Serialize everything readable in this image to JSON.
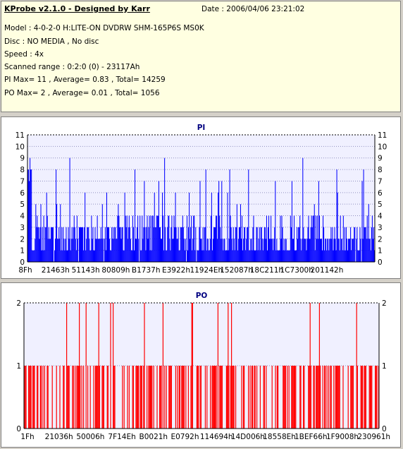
{
  "app": {
    "title": "KProbe v2.1.0 - Designed by Karr",
    "date": "Date : 2006/04/06 23:21:02"
  },
  "info": {
    "model": "Model : 4-0-2-0 H:LITE-ON DVDRW SHM-165P6S MS0K",
    "disc": "Disc : NO MEDIA , No disc",
    "speed": "Speed : 4x",
    "range": "Scanned range : 0:2:0 (0) - 23117Ah",
    "pi_summary": "PI Max= 11 , Average= 0.83 , Total= 14259",
    "po_summary": "PO Max= 2 , Average= 0.01 , Total= 1056"
  },
  "colors": {
    "pi": "#0000ff",
    "po": "#ff0000",
    "plot_bg": "#f0f0ff",
    "panel_bg": "#ffffe1"
  },
  "chart_data": [
    {
      "type": "bar",
      "title": "PI",
      "ylim": [
        0,
        11
      ],
      "yticks": [
        "0",
        "1",
        "2",
        "3",
        "4",
        "5",
        "6",
        "7",
        "8",
        "9",
        "10",
        "11"
      ],
      "xticks": [
        "8Fh",
        "21463h",
        "51143h",
        "80809h",
        "B1737h",
        "E3922h",
        "11924Eh",
        "152087h",
        "18C211h",
        "1C7300h",
        "201142h"
      ],
      "max": 11,
      "average": 0.83,
      "total": 14259,
      "grid": true,
      "series": [
        {
          "name": "PI",
          "color": "#0000ff"
        }
      ]
    },
    {
      "type": "bar",
      "title": "PO",
      "ylim": [
        0,
        2
      ],
      "yticks": [
        "0",
        "1",
        "2"
      ],
      "xticks": [
        "1Fh",
        "21036h",
        "50006h",
        "7F14Eh",
        "B0021h",
        "E0792h",
        "114694h",
        "14D006h",
        "18558Eh",
        "1BEF66h",
        "1F9008h",
        "230961h"
      ],
      "max": 2,
      "average": 0.01,
      "total": 1056,
      "grid": true,
      "series": [
        {
          "name": "PO",
          "color": "#ff0000"
        }
      ]
    }
  ]
}
